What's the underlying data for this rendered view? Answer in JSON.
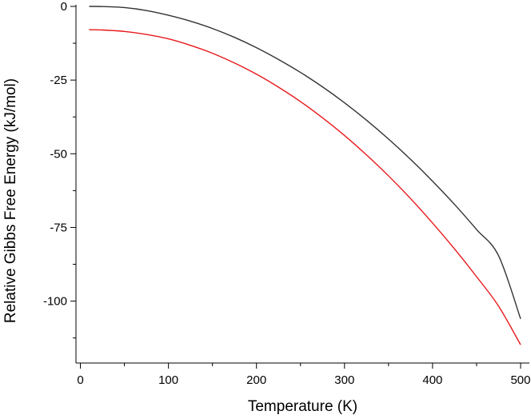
{
  "chart_data": {
    "type": "line",
    "title": "",
    "xlabel": "Temperature (K)",
    "ylabel": "Relative Gibbs Free Energy (kJ/mol)",
    "xlim": [
      -5,
      510
    ],
    "ylim": [
      -121,
      0
    ],
    "x_ticks": [
      0,
      100,
      200,
      300,
      400,
      500
    ],
    "y_ticks": [
      0,
      -25,
      -50,
      -75,
      -100
    ],
    "x_minor_step": 50,
    "y_minor_step": 12.5,
    "grid": false,
    "legend": "none",
    "series": [
      {
        "color": "#333333",
        "x": [
          10,
          25,
          50,
          75,
          100,
          125,
          150,
          175,
          200,
          225,
          250,
          275,
          300,
          325,
          350,
          375,
          400,
          425,
          450,
          475,
          500
        ],
        "y": [
          0,
          -0.05,
          -0.4,
          -1.4,
          -3.0,
          -5.0,
          -7.5,
          -10.5,
          -14.0,
          -18.0,
          -22.4,
          -27.3,
          -32.7,
          -38.6,
          -45.0,
          -51.9,
          -59.3,
          -67.2,
          -75.7,
          -84.6,
          -106.0
        ]
      },
      {
        "color": "#e8191c",
        "x": [
          10,
          25,
          50,
          75,
          100,
          125,
          150,
          175,
          200,
          225,
          250,
          275,
          300,
          325,
          350,
          375,
          400,
          425,
          450,
          475,
          500
        ],
        "y": [
          -7.9,
          -8.0,
          -8.5,
          -9.5,
          -11.0,
          -13.2,
          -15.9,
          -19.2,
          -23.0,
          -27.4,
          -32.3,
          -37.8,
          -43.8,
          -50.4,
          -57.5,
          -65.2,
          -73.5,
          -82.3,
          -91.7,
          -101.7,
          -114.8
        ]
      }
    ]
  }
}
